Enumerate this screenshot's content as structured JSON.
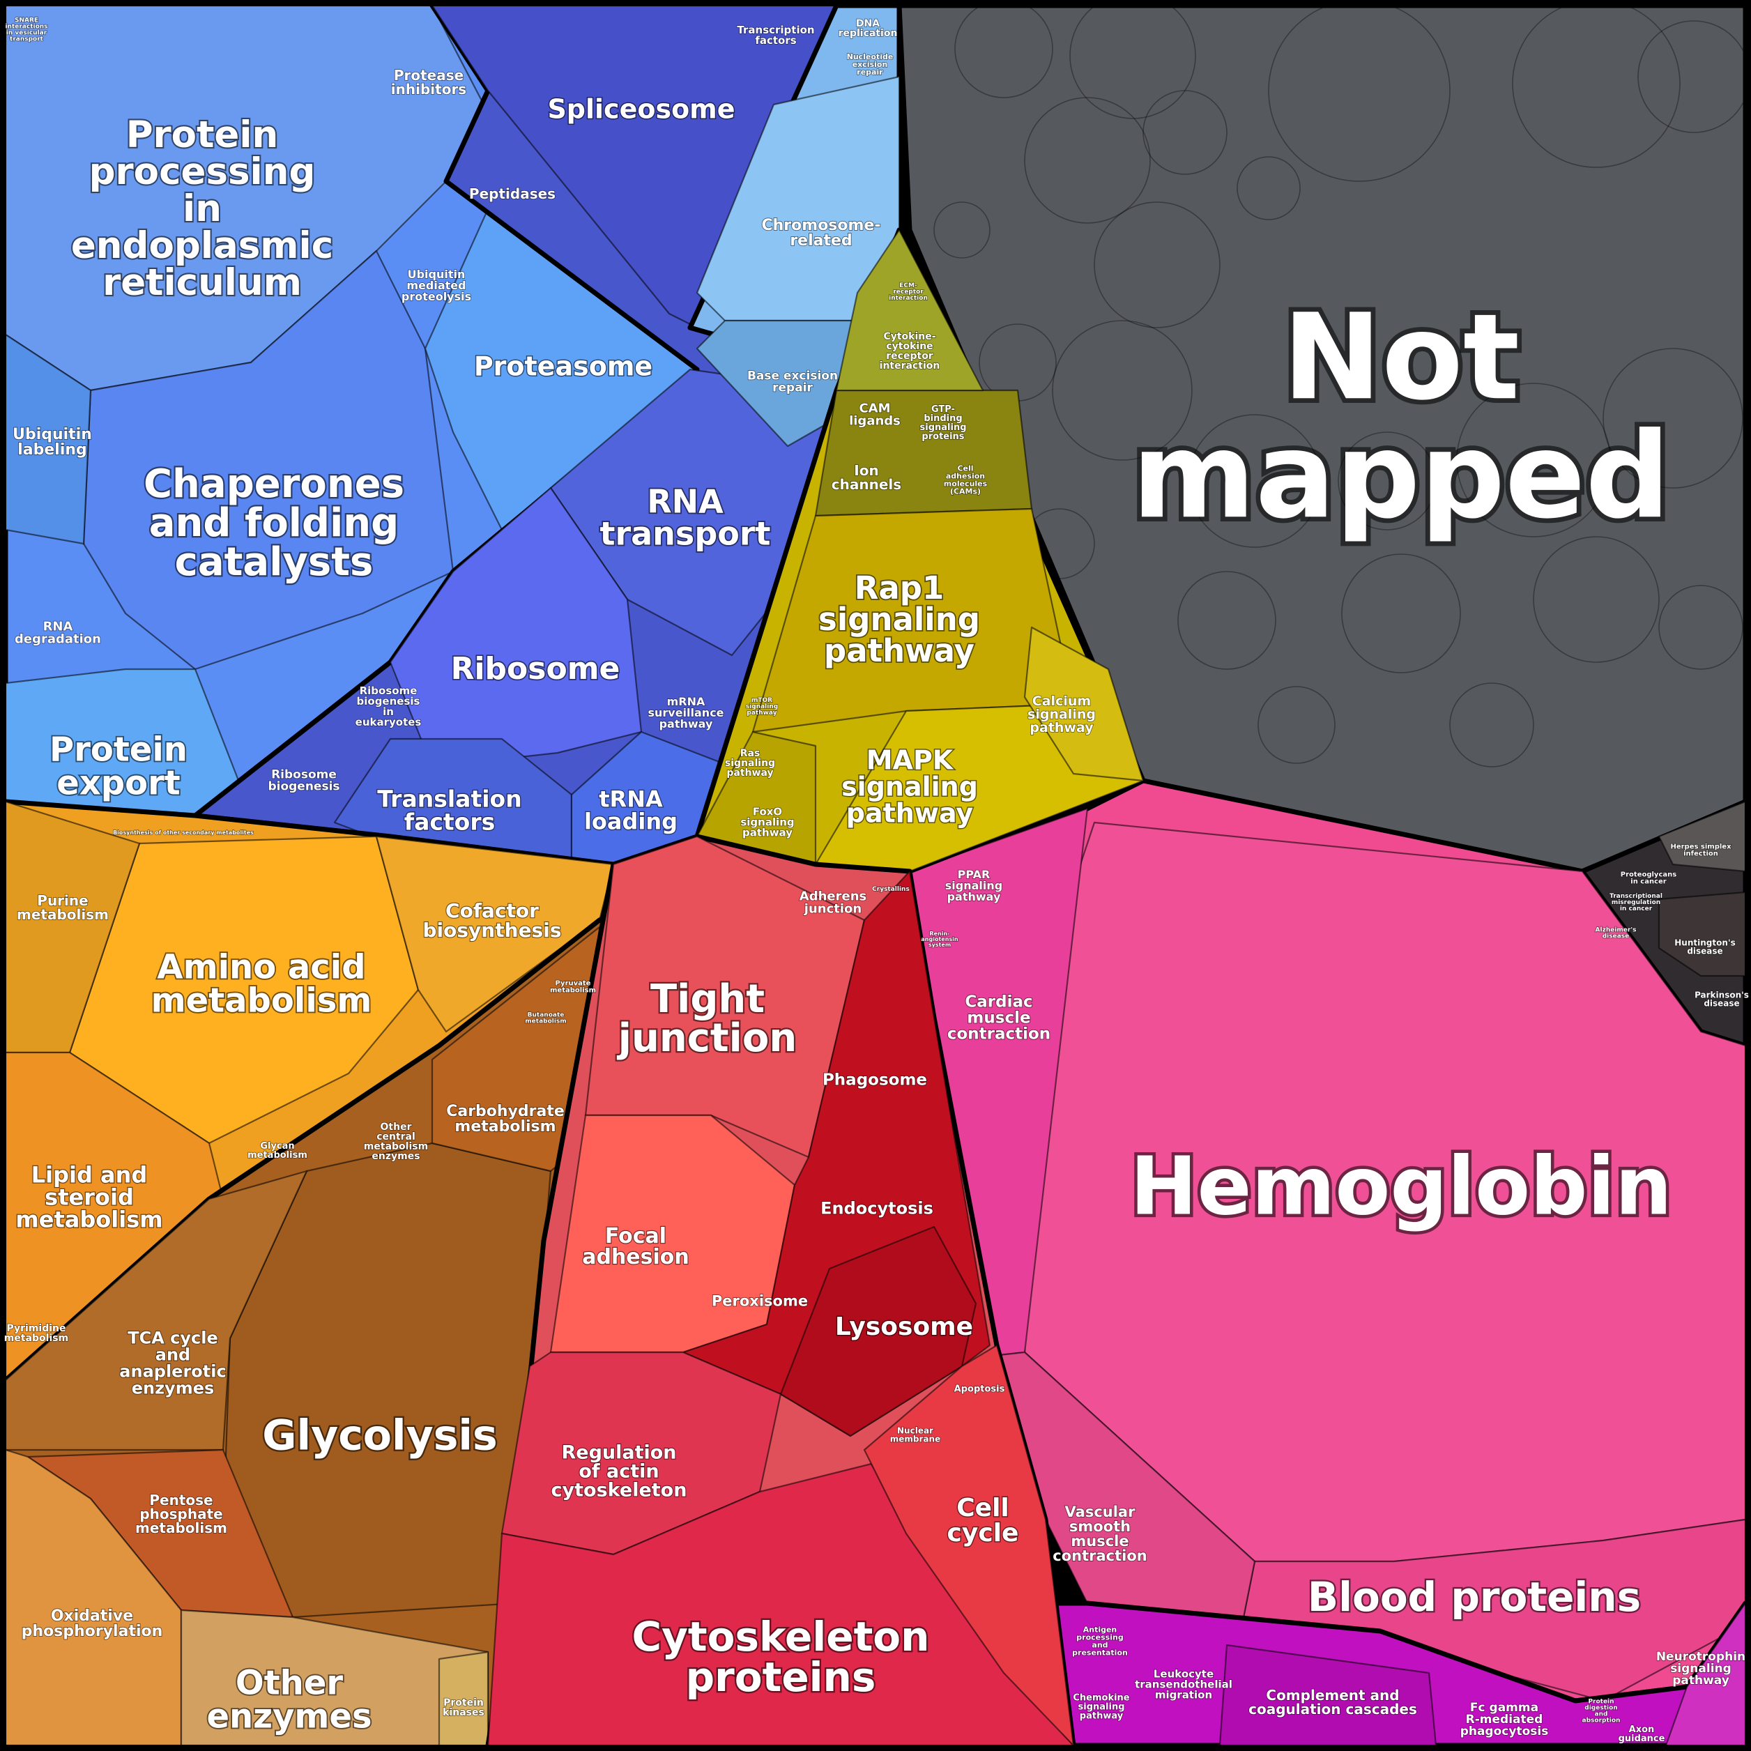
{
  "colors": {
    "blue": "#5b8ef5",
    "indigo": "#4858cc",
    "lightblue": "#7fb8ee",
    "olive": "#c8b400",
    "orange": "#f0a020",
    "brown": "#a86020",
    "red": "#e0505a",
    "crimson": "#c01020",
    "pink": "#f04a90",
    "magenta": "#c010c0",
    "gray": "#565a5e",
    "dark": "#302c30"
  },
  "labels": {
    "not_mapped": "Not mapped",
    "hemoglobin": "Hemoglobin",
    "blood_proteins": "Blood proteins",
    "protein_processing": "Protein processing in endoplasmic reticulum",
    "chaperones": "Chaperones and folding catalysts",
    "protein_export": "Protein export",
    "proteasome": "Proteasome",
    "spliceosome": "Spliceosome",
    "rna_transport": "RNA transport",
    "ribosome": "Ribosome",
    "translation_factors": "Translation factors",
    "trna_loading": "tRNA loading",
    "rap1": "Rap1 signaling pathway",
    "mapk": "MAPK signaling pathway",
    "amino_acid": "Amino acid metabolism",
    "glycolysis": "Glycolysis",
    "other_enzymes": "Other enzymes",
    "lipid": "Lipid and steroid metabolism",
    "tight_junction": "Tight junction",
    "cytoskeleton": "Cytoskeleton proteins",
    "lysosome": "Lysosome",
    "cell_cycle": "Cell cycle",
    "protease_inhibitors": "Protease inhibitors",
    "peptidases": "Peptidases",
    "ubiquitin_mediated": "Ubiquitin mediated proteolysis",
    "ubiquitin_labeling": "Ubiquitin labeling",
    "rna_degradation": "RNA degradation",
    "ribosome_biogenesis_euk": "Ribosome biogenesis in eukaryotes",
    "ribosome_biogenesis": "Ribosome biogenesis",
    "mrna_surveillance": "mRNA surveillance pathway",
    "transcription_factors": "Transcription factors",
    "dna_replication": "DNA replication",
    "nucleotide_excision": "Nucleotide excision repair",
    "chromosome": "Chromosome-related",
    "base_excision": "Base excision repair",
    "snare": "SNARE interactions in vesicular transport",
    "ecm": "ECM-receptor interaction",
    "cytokine": "Cytokine-cytokine receptor interaction",
    "cam_ligands": "CAM ligands",
    "gtp": "GTP-binding signaling proteins",
    "ion_channels": "Ion channels",
    "cell_adhesion": "Cell adhesion molecules (CAMs)",
    "calcium": "Calcium signaling pathway",
    "mtor": "mTOR signaling pathway",
    "ras": "Ras signaling pathway",
    "foxo": "FoxO signaling pathway",
    "purine": "Purine metabolism",
    "cofactor": "Cofactor biosynthesis",
    "biosynthesis_other": "Biosynthesis of other secondary metabolites",
    "pyruvate": "Pyruvate metabolism",
    "butanoate": "Butanoate metabolism",
    "carbohydrate": "Carbohydrate metabolism",
    "other_central": "Other central metabolism enzymes",
    "glycan": "Glycan metabolism",
    "pyrimidine": "Pyrimidine metabolism",
    "tca": "TCA cycle and anaplerotic enzymes",
    "pentose": "Pentose phosphate metabolism",
    "oxidative": "Oxidative phosphorylation",
    "protein_kinases": "Protein kinases",
    "adherens": "Adherens junction",
    "crystallins": "Crystallins",
    "phagosome": "Phagosome",
    "focal_adhesion": "Focal adhesion",
    "endocytosis": "Endocytosis",
    "peroxisome": "Peroxisome",
    "regulation_actin": "Regulation of actin cytoskeleton",
    "apoptosis": "Apoptosis",
    "nuclear_membrane": "Nuclear membrane",
    "ppar": "PPAR signaling pathway",
    "renin": "Renin-angiotensin system",
    "cardiac": "Cardiac muscle contraction",
    "vascular": "Vascular smooth muscle contraction",
    "antigen": "Antigen processing and presentation",
    "chemokine": "Chemokine signaling pathway",
    "leukocyte": "Leukocyte transendothelial migration",
    "complement": "Complement and coagulation cascades",
    "fc_gamma": "Fc gamma R-mediated phagocytosis",
    "protein_digestion": "Protein digestion and absorption",
    "axon": "Axon guidance",
    "neurotrophin": "Neurotrophin signaling pathway",
    "herpes": "Herpes simplex infection",
    "proteoglycans": "Proteoglycans in cancer",
    "transcriptional_misreg": "Transcriptional misregulation in cancer",
    "alzheimers": "Alzheimer's disease",
    "huntingtons": "Huntington's disease",
    "parkinsons": "Parkinson's disease"
  }
}
